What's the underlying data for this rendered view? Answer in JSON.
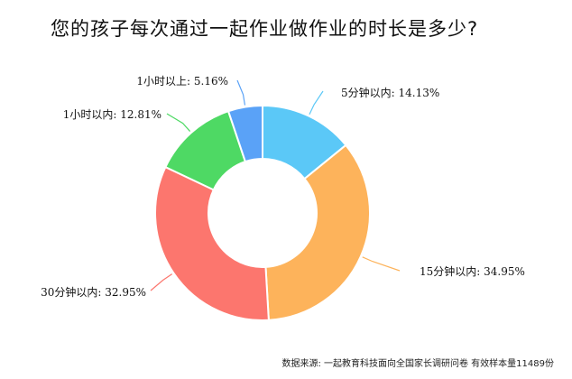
{
  "chart_data": {
    "type": "pie",
    "donut": true,
    "title": "您的孩子每次通过一起作业做作业的时长是多少?",
    "unit": "%",
    "slices": [
      {
        "label": "5分钟以内",
        "value": 14.13,
        "color": "#5BC8F7"
      },
      {
        "label": "15分钟以内",
        "value": 34.95,
        "color": "#FDB35B"
      },
      {
        "label": "30分钟以内",
        "value": 32.95,
        "color": "#FC766E"
      },
      {
        "label": "1小时以内",
        "value": 12.81,
        "color": "#4ED964"
      },
      {
        "label": "1小时以上",
        "value": 5.16,
        "color": "#5AA2F7"
      }
    ],
    "display_labels": [
      "5分钟以内: 14.13%",
      "15分钟以内: 34.95%",
      "30分钟以内: 32.95%",
      "1小时以内: 12.81%",
      "1小时以上: 5.16%"
    ],
    "source": "数据来源:   一起教育科技面向全国家长调研问卷 有效样本量11489份"
  }
}
